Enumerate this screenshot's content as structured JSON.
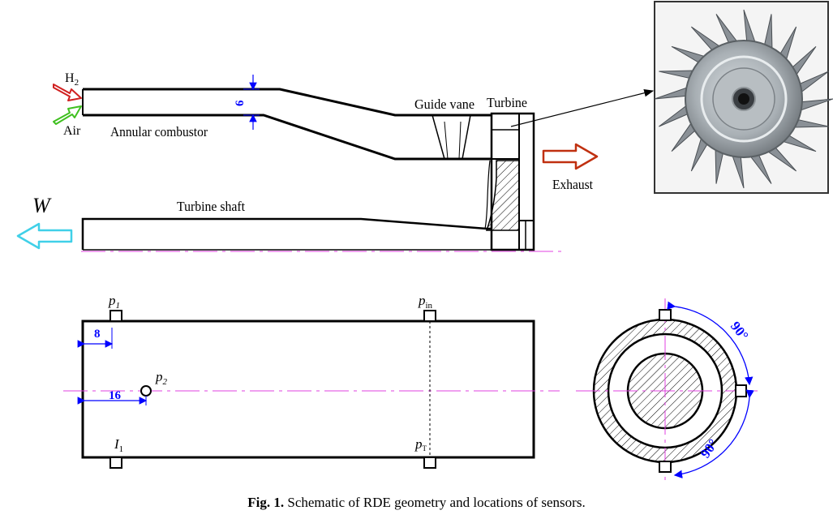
{
  "top_schematic": {
    "inlet_h2": "H",
    "inlet_h2_sub": "2",
    "inlet_air": "Air",
    "combustor_label": "Annular combustor",
    "gap_dimension": "6",
    "guide_vane_label": "Guide vane",
    "turbine_label": "Turbine",
    "exhaust_label": "Exhaust",
    "power_label": "W",
    "shaft_label": "Turbine shaft"
  },
  "sensor_layout": {
    "p1": "p",
    "p1_sub": "1",
    "p2": "p",
    "p2_sub": "2",
    "pin": "p",
    "pin_sub": "in",
    "pt": "p",
    "pt_sub": "T",
    "i1": "I",
    "i1_sub": "1",
    "dim_8": "8",
    "dim_16": "16"
  },
  "cross_section": {
    "angle_top": "90°",
    "angle_bottom": "90°"
  },
  "caption": {
    "label": "Fig. 1.",
    "text": " Schematic of RDE geometry and locations of sensors."
  },
  "colors": {
    "h2_arrow": "#d02020",
    "air_arrow": "#40c020",
    "exhaust_arrow": "#c03010",
    "power_arrow": "#40d0e8",
    "centerline": "#e040e0",
    "dimension": "#0000ff"
  }
}
